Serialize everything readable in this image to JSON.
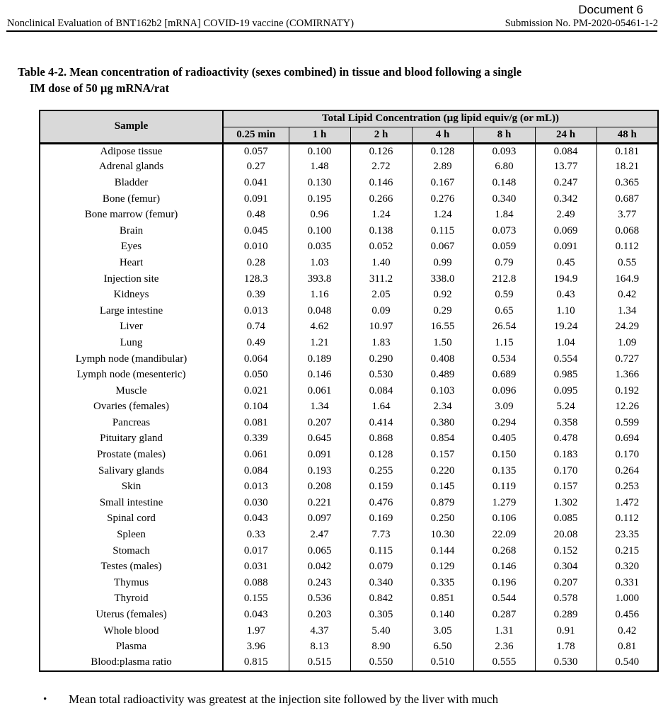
{
  "page_header": {
    "document_label": "Document 6",
    "running_title": "Nonclinical Evaluation of BNT162b2 [mRNA] COVID-19 vaccine (COMIRNATY)",
    "submission_no": "Submission No. PM-2020-05461-1-2"
  },
  "table_title": {
    "line1": "Table 4-2. Mean concentration of radioactivity (sexes combined) in tissue and blood following a single",
    "line2": "IM dose of 50 µg mRNA/rat"
  },
  "table": {
    "sample_header": "Sample",
    "group_header": "Total Lipid Concentration (µg lipid equiv/g (or mL))",
    "time_columns": [
      "0.25 min",
      "1 h",
      "2 h",
      "4 h",
      "8 h",
      "24 h",
      "48 h"
    ],
    "rows": [
      {
        "sample": "Adipose tissue",
        "values": [
          "0.057",
          "0.100",
          "0.126",
          "0.128",
          "0.093",
          "0.084",
          "0.181"
        ]
      },
      {
        "sample": "Adrenal glands",
        "values": [
          "0.27",
          "1.48",
          "2.72",
          "2.89",
          "6.80",
          "13.77",
          "18.21"
        ]
      },
      {
        "sample": "Bladder",
        "values": [
          "0.041",
          "0.130",
          "0.146",
          "0.167",
          "0.148",
          "0.247",
          "0.365"
        ]
      },
      {
        "sample": "Bone (femur)",
        "values": [
          "0.091",
          "0.195",
          "0.266",
          "0.276",
          "0.340",
          "0.342",
          "0.687"
        ]
      },
      {
        "sample": "Bone marrow (femur)",
        "values": [
          "0.48",
          "0.96",
          "1.24",
          "1.24",
          "1.84",
          "2.49",
          "3.77"
        ]
      },
      {
        "sample": "Brain",
        "values": [
          "0.045",
          "0.100",
          "0.138",
          "0.115",
          "0.073",
          "0.069",
          "0.068"
        ]
      },
      {
        "sample": "Eyes",
        "values": [
          "0.010",
          "0.035",
          "0.052",
          "0.067",
          "0.059",
          "0.091",
          "0.112"
        ]
      },
      {
        "sample": "Heart",
        "values": [
          "0.28",
          "1.03",
          "1.40",
          "0.99",
          "0.79",
          "0.45",
          "0.55"
        ]
      },
      {
        "sample": "Injection site",
        "values": [
          "128.3",
          "393.8",
          "311.2",
          "338.0",
          "212.8",
          "194.9",
          "164.9"
        ]
      },
      {
        "sample": "Kidneys",
        "values": [
          "0.39",
          "1.16",
          "2.05",
          "0.92",
          "0.59",
          "0.43",
          "0.42"
        ]
      },
      {
        "sample": "Large intestine",
        "values": [
          "0.013",
          "0.048",
          "0.09",
          "0.29",
          "0.65",
          "1.10",
          "1.34"
        ]
      },
      {
        "sample": "Liver",
        "values": [
          "0.74",
          "4.62",
          "10.97",
          "16.55",
          "26.54",
          "19.24",
          "24.29"
        ]
      },
      {
        "sample": "Lung",
        "values": [
          "0.49",
          "1.21",
          "1.83",
          "1.50",
          "1.15",
          "1.04",
          "1.09"
        ]
      },
      {
        "sample": "Lymph node (mandibular)",
        "values": [
          "0.064",
          "0.189",
          "0.290",
          "0.408",
          "0.534",
          "0.554",
          "0.727"
        ]
      },
      {
        "sample": "Lymph node (mesenteric)",
        "values": [
          "0.050",
          "0.146",
          "0.530",
          "0.489",
          "0.689",
          "0.985",
          "1.366"
        ]
      },
      {
        "sample": "Muscle",
        "values": [
          "0.021",
          "0.061",
          "0.084",
          "0.103",
          "0.096",
          "0.095",
          "0.192"
        ]
      },
      {
        "sample": "Ovaries (females)",
        "values": [
          "0.104",
          "1.34",
          "1.64",
          "2.34",
          "3.09",
          "5.24",
          "12.26"
        ]
      },
      {
        "sample": "Pancreas",
        "values": [
          "0.081",
          "0.207",
          "0.414",
          "0.380",
          "0.294",
          "0.358",
          "0.599"
        ]
      },
      {
        "sample": "Pituitary gland",
        "values": [
          "0.339",
          "0.645",
          "0.868",
          "0.854",
          "0.405",
          "0.478",
          "0.694"
        ]
      },
      {
        "sample": "Prostate (males)",
        "values": [
          "0.061",
          "0.091",
          "0.128",
          "0.157",
          "0.150",
          "0.183",
          "0.170"
        ]
      },
      {
        "sample": "Salivary glands",
        "values": [
          "0.084",
          "0.193",
          "0.255",
          "0.220",
          "0.135",
          "0.170",
          "0.264"
        ]
      },
      {
        "sample": "Skin",
        "values": [
          "0.013",
          "0.208",
          "0.159",
          "0.145",
          "0.119",
          "0.157",
          "0.253"
        ]
      },
      {
        "sample": "Small intestine",
        "values": [
          "0.030",
          "0.221",
          "0.476",
          "0.879",
          "1.279",
          "1.302",
          "1.472"
        ]
      },
      {
        "sample": "Spinal cord",
        "values": [
          "0.043",
          "0.097",
          "0.169",
          "0.250",
          "0.106",
          "0.085",
          "0.112"
        ]
      },
      {
        "sample": "Spleen",
        "values": [
          "0.33",
          "2.47",
          "7.73",
          "10.30",
          "22.09",
          "20.08",
          "23.35"
        ]
      },
      {
        "sample": "Stomach",
        "values": [
          "0.017",
          "0.065",
          "0.115",
          "0.144",
          "0.268",
          "0.152",
          "0.215"
        ]
      },
      {
        "sample": "Testes (males)",
        "values": [
          "0.031",
          "0.042",
          "0.079",
          "0.129",
          "0.146",
          "0.304",
          "0.320"
        ]
      },
      {
        "sample": "Thymus",
        "values": [
          "0.088",
          "0.243",
          "0.340",
          "0.335",
          "0.196",
          "0.207",
          "0.331"
        ]
      },
      {
        "sample": "Thyroid",
        "values": [
          "0.155",
          "0.536",
          "0.842",
          "0.851",
          "0.544",
          "0.578",
          "1.000"
        ]
      },
      {
        "sample": "Uterus (females)",
        "values": [
          "0.043",
          "0.203",
          "0.305",
          "0.140",
          "0.287",
          "0.289",
          "0.456"
        ]
      },
      {
        "sample": "Whole blood",
        "values": [
          "1.97",
          "4.37",
          "5.40",
          "3.05",
          "1.31",
          "0.91",
          "0.42"
        ]
      },
      {
        "sample": "Plasma",
        "values": [
          "3.96",
          "8.13",
          "8.90",
          "6.50",
          "2.36",
          "1.78",
          "0.81"
        ]
      },
      {
        "sample": "Blood:plasma ratio",
        "values": [
          "0.815",
          "0.515",
          "0.550",
          "0.510",
          "0.555",
          "0.530",
          "0.540"
        ]
      }
    ]
  },
  "footer_bullet": {
    "glyph": "•",
    "text": "Mean total radioactivity was greatest at the injection site followed by the liver with much"
  },
  "colors": {
    "header_bg": "#d9d9d9",
    "border": "#000000",
    "page_bg": "#ffffff"
  }
}
